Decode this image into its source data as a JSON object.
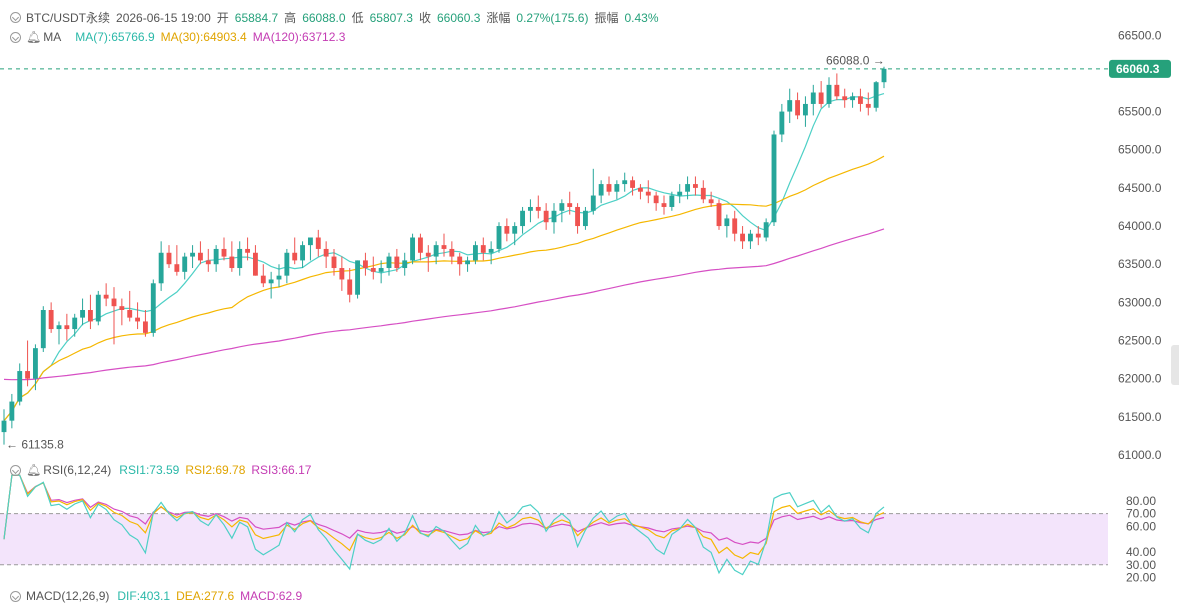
{
  "header": {
    "symbol": "BTC/USDT永续",
    "datetime": "2026-06-15 19:00",
    "open_label": "开",
    "open": "65884.7",
    "high_label": "高",
    "high": "66088.0",
    "low_label": "低",
    "low": "65807.3",
    "close_label": "收",
    "close": "66060.3",
    "change_label": "涨幅",
    "change": "0.27%(175.6)",
    "amp_label": "振幅",
    "amp": "0.43%"
  },
  "ma_legend": {
    "name": "MA",
    "ma7": "MA(7):65766.9",
    "ma30": "MA(30):64903.4",
    "ma120": "MA(120):63712.3"
  },
  "rsi_legend": {
    "name": "RSI(6,12,24)",
    "rsi1": "RSI1:73.59",
    "rsi2": "RSI2:69.78",
    "rsi3": "RSI3:66.17"
  },
  "macd_legend": {
    "name": "MACD(12,26,9)",
    "dif": "DIF:403.1",
    "dea": "DEA:277.6",
    "macd": "MACD:62.9"
  },
  "colors": {
    "up": "#26a69a",
    "down": "#ef5350",
    "ma7": "#4dd0c6",
    "ma30": "#f5b700",
    "ma120": "#d64fc4",
    "rsi_band": "#f3e4fb",
    "last_price_bg": "#26a17b"
  },
  "chart_data": {
    "type": "candlestick",
    "price_axis": {
      "ticks": [
        "66500.0",
        "66000.0",
        "65500.0",
        "65000.0",
        "64500.0",
        "64000.0",
        "63500.0",
        "63000.0",
        "62500.0",
        "62000.0",
        "61500.0",
        "61000.0"
      ],
      "ylim": [
        61000,
        66700
      ]
    },
    "last_price": "66060.3",
    "max_annotation": "66088.0",
    "min_annotation": "61135.8",
    "candles": [
      [
        61300,
        61600,
        61136,
        61450
      ],
      [
        61450,
        61800,
        61350,
        61700
      ],
      [
        61700,
        62200,
        61650,
        62100
      ],
      [
        62100,
        62500,
        61900,
        62000
      ],
      [
        62000,
        62450,
        61850,
        62400
      ],
      [
        62400,
        62950,
        62350,
        62900
      ],
      [
        62900,
        63000,
        62600,
        62650
      ],
      [
        62650,
        62750,
        62450,
        62700
      ],
      [
        62700,
        62850,
        62500,
        62650
      ],
      [
        62650,
        62850,
        62550,
        62800
      ],
      [
        62800,
        63050,
        62700,
        62900
      ],
      [
        62900,
        63100,
        62650,
        62750
      ],
      [
        62750,
        63150,
        62700,
        63100
      ],
      [
        63100,
        63250,
        62950,
        63050
      ],
      [
        63050,
        63200,
        62450,
        62950
      ],
      [
        62950,
        63050,
        62700,
        62900
      ],
      [
        62900,
        63150,
        62750,
        62800
      ],
      [
        62800,
        63000,
        62650,
        62750
      ],
      [
        62750,
        62900,
        62550,
        62600
      ],
      [
        62600,
        63300,
        62550,
        63250
      ],
      [
        63250,
        63800,
        63150,
        63650
      ],
      [
        63650,
        63750,
        63450,
        63500
      ],
      [
        63500,
        63750,
        63350,
        63400
      ],
      [
        63400,
        63650,
        63300,
        63600
      ],
      [
        63600,
        63750,
        63450,
        63650
      ],
      [
        63650,
        63800,
        63500,
        63550
      ],
      [
        63550,
        63700,
        63400,
        63500
      ],
      [
        63500,
        63750,
        63400,
        63700
      ],
      [
        63700,
        63850,
        63550,
        63600
      ],
      [
        63600,
        63800,
        63400,
        63450
      ],
      [
        63450,
        63800,
        63350,
        63700
      ],
      [
        63700,
        63850,
        63550,
        63650
      ],
      [
        63650,
        63750,
        63350,
        63350
      ],
      [
        63350,
        63500,
        63200,
        63250
      ],
      [
        63250,
        63400,
        63050,
        63300
      ],
      [
        63300,
        63500,
        63200,
        63350
      ],
      [
        63350,
        63700,
        63250,
        63650
      ],
      [
        63650,
        63850,
        63500,
        63550
      ],
      [
        63550,
        63800,
        63450,
        63750
      ],
      [
        63750,
        63850,
        63550,
        63850
      ],
      [
        63850,
        63950,
        63600,
        63700
      ],
      [
        63700,
        63800,
        63450,
        63600
      ],
      [
        63600,
        63700,
        63350,
        63450
      ],
      [
        63450,
        63600,
        63150,
        63300
      ],
      [
        63300,
        63450,
        63000,
        63100
      ],
      [
        63100,
        63550,
        63050,
        63550
      ],
      [
        63550,
        63650,
        63350,
        63450
      ],
      [
        63450,
        63600,
        63300,
        63400
      ],
      [
        63400,
        63550,
        63250,
        63450
      ],
      [
        63450,
        63650,
        63350,
        63600
      ],
      [
        63600,
        63700,
        63400,
        63450
      ],
      [
        63450,
        63650,
        63350,
        63550
      ],
      [
        63550,
        63900,
        63500,
        63850
      ],
      [
        63850,
        63900,
        63550,
        63650
      ],
      [
        63650,
        63750,
        63400,
        63600
      ],
      [
        63600,
        63800,
        63500,
        63750
      ],
      [
        63750,
        63900,
        63600,
        63700
      ],
      [
        63700,
        63800,
        63500,
        63600
      ],
      [
        63600,
        63650,
        63350,
        63500
      ],
      [
        63500,
        63600,
        63400,
        63550
      ],
      [
        63550,
        63800,
        63500,
        63750
      ],
      [
        63750,
        63850,
        63550,
        63650
      ],
      [
        63650,
        63800,
        63500,
        63700
      ],
      [
        63700,
        64050,
        63650,
        64000
      ],
      [
        64000,
        64100,
        63800,
        63900
      ],
      [
        63900,
        64050,
        63750,
        64000
      ],
      [
        64000,
        64250,
        63900,
        64200
      ],
      [
        64200,
        64350,
        64050,
        64250
      ],
      [
        64250,
        64400,
        64100,
        64200
      ],
      [
        64200,
        64300,
        63950,
        64050
      ],
      [
        64050,
        64300,
        63900,
        64200
      ],
      [
        64200,
        64350,
        64050,
        64300
      ],
      [
        64300,
        64450,
        64150,
        64250
      ],
      [
        64250,
        64300,
        63900,
        64000
      ],
      [
        64000,
        64250,
        63950,
        64200
      ],
      [
        64200,
        64750,
        64150,
        64400
      ],
      [
        64400,
        64600,
        64300,
        64550
      ],
      [
        64550,
        64650,
        64400,
        64450
      ],
      [
        64450,
        64600,
        64350,
        64550
      ],
      [
        64550,
        64700,
        64450,
        64600
      ],
      [
        64600,
        64650,
        64400,
        64500
      ],
      [
        64500,
        64550,
        64350,
        64450
      ],
      [
        64450,
        64600,
        64300,
        64400
      ],
      [
        64400,
        64450,
        64200,
        64300
      ],
      [
        64300,
        64400,
        64150,
        64250
      ],
      [
        64250,
        64450,
        64200,
        64400
      ],
      [
        64400,
        64550,
        64300,
        64450
      ],
      [
        64450,
        64650,
        64350,
        64550
      ],
      [
        64550,
        64650,
        64400,
        64500
      ],
      [
        64500,
        64600,
        64300,
        64350
      ],
      [
        64350,
        64450,
        64250,
        64300
      ],
      [
        64300,
        64350,
        63950,
        64000
      ],
      [
        64000,
        64150,
        63850,
        64100
      ],
      [
        64100,
        64200,
        63800,
        63900
      ],
      [
        63900,
        64000,
        63700,
        63800
      ],
      [
        63800,
        63950,
        63700,
        63900
      ],
      [
        63900,
        64000,
        63750,
        63850
      ],
      [
        63850,
        64100,
        63800,
        64050
      ],
      [
        64050,
        65250,
        64000,
        65200
      ],
      [
        65200,
        65600,
        65100,
        65500
      ],
      [
        65500,
        65800,
        65350,
        65650
      ],
      [
        65650,
        65750,
        65400,
        65450
      ],
      [
        65450,
        65700,
        65300,
        65600
      ],
      [
        65600,
        65850,
        65450,
        65750
      ],
      [
        65750,
        65900,
        65550,
        65600
      ],
      [
        65600,
        65950,
        65550,
        65850
      ],
      [
        65850,
        66000,
        65650,
        65700
      ],
      [
        65700,
        65800,
        65550,
        65650
      ],
      [
        65650,
        65750,
        65550,
        65700
      ],
      [
        65700,
        65800,
        65500,
        65600
      ],
      [
        65600,
        65750,
        65450,
        65550
      ],
      [
        65550,
        65900,
        65500,
        65885
      ],
      [
        65885,
        66088,
        65807,
        66060
      ]
    ],
    "ma_params": [
      7,
      30,
      120
    ],
    "ma120_start": 62000,
    "rsi_axis": {
      "ticks": [
        "80.00",
        "70.00",
        "60.00",
        "40.00",
        "30.00",
        "20.00"
      ],
      "band": [
        30,
        70
      ],
      "ylim": [
        15,
        90
      ]
    }
  }
}
